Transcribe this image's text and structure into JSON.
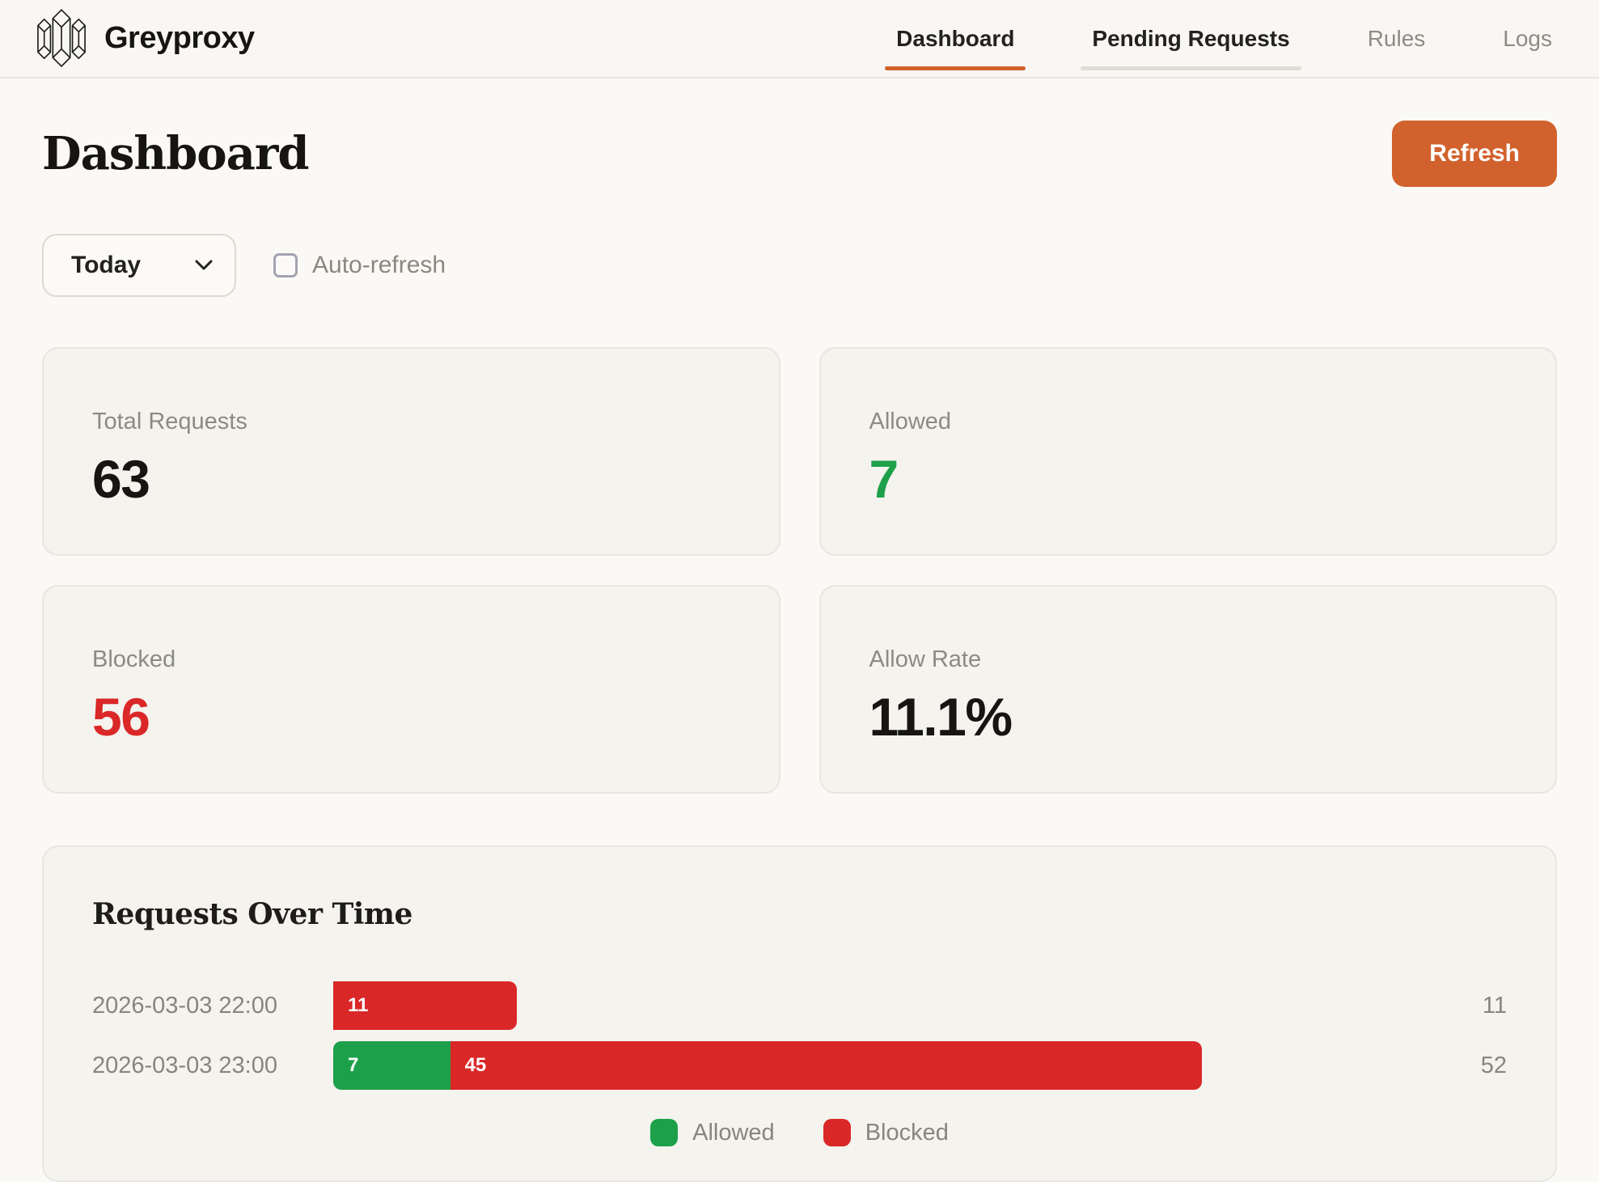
{
  "brand": {
    "name": "Greyproxy"
  },
  "nav": {
    "items": [
      {
        "label": "Dashboard",
        "state": "active"
      },
      {
        "label": "Pending Requests",
        "state": "secondary"
      },
      {
        "label": "Rules",
        "state": "muted"
      },
      {
        "label": "Logs",
        "state": "muted"
      }
    ]
  },
  "page": {
    "title": "Dashboard",
    "refresh_label": "Refresh"
  },
  "controls": {
    "range_selected": "Today",
    "auto_refresh_label": "Auto-refresh",
    "auto_refresh_checked": false
  },
  "stats": [
    {
      "label": "Total Requests",
      "value": "63",
      "color": "default"
    },
    {
      "label": "Allowed",
      "value": "7",
      "color": "green"
    },
    {
      "label": "Blocked",
      "value": "56",
      "color": "red"
    },
    {
      "label": "Allow Rate",
      "value": "11.1%",
      "color": "default"
    }
  ],
  "chart_data": {
    "type": "bar",
    "orientation": "horizontal",
    "title": "Requests Over Time",
    "categories": [
      "2026-03-03 22:00",
      "2026-03-03 23:00"
    ],
    "series": [
      {
        "name": "Allowed",
        "color": "#1da04a",
        "values": [
          0,
          7
        ]
      },
      {
        "name": "Blocked",
        "color": "#da2727",
        "values": [
          11,
          45
        ]
      }
    ],
    "totals": [
      11,
      52
    ],
    "xmax": 52,
    "grid": false,
    "legend_position": "bottom"
  },
  "colors": {
    "accent_orange": "#d2622d",
    "green": "#1da04a",
    "red": "#da2727",
    "page_background": "#faf9f5",
    "card_background": "#f4f3ee"
  }
}
